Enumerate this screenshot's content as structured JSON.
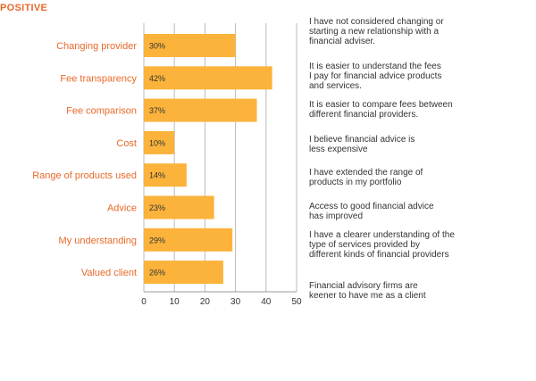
{
  "heading": "POSITIVE",
  "chart_data": {
    "type": "bar",
    "orientation": "horizontal",
    "categories": [
      "Changing provider",
      "Fee transparency",
      "Fee comparison",
      "Cost",
      "Range of products used",
      "Advice",
      "My understanding",
      "Valued client"
    ],
    "values": [
      30,
      42,
      37,
      10,
      14,
      23,
      29,
      26
    ],
    "value_labels": [
      "30%",
      "42%",
      "37%",
      "10%",
      "14%",
      "23%",
      "29%",
      "26%"
    ],
    "descriptions": [
      [
        "I have not considered changing or",
        "starting a new relationship with a",
        "financial adviser."
      ],
      [
        "It is easier to understand the fees",
        "I pay for financial advice products",
        "and services."
      ],
      [
        "It is easier to compare fees between",
        "different financial providers."
      ],
      [
        "I believe financial advice is",
        "less expensive"
      ],
      [
        "I have extended the range of",
        "products in my portfolio"
      ],
      [
        "Access to good financial advice",
        "has improved"
      ],
      [
        "I have a clearer understanding of the",
        "type of services provided by",
        "different kinds of financial providers"
      ],
      [
        "Financial advisory firms are",
        "keener to have me as a client"
      ]
    ],
    "xticks": [
      "0",
      "10",
      "20",
      "30",
      "40",
      "50"
    ],
    "xlim": [
      0,
      50
    ],
    "grid": true,
    "colors": {
      "bar": "#fbb33b",
      "category_label": "#e8692a",
      "heading": "#e8692a",
      "grid": "#bbbbbb"
    }
  }
}
